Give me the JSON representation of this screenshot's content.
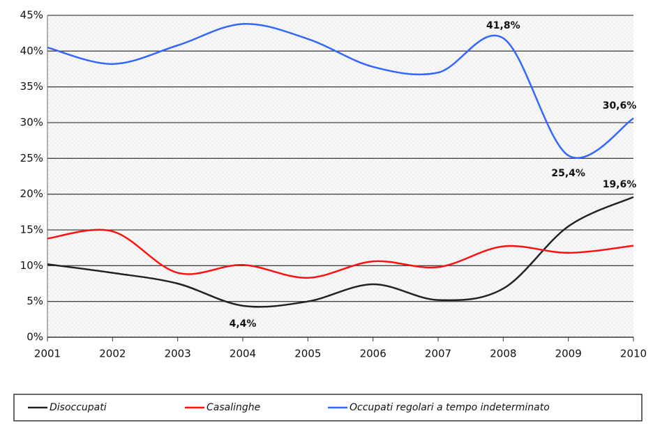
{
  "chart_data": {
    "type": "line",
    "x": [
      2001,
      2002,
      2003,
      2004,
      2005,
      2006,
      2007,
      2008,
      2009,
      2010
    ],
    "xlim": [
      2001,
      2010
    ],
    "xticks": [
      2001,
      2002,
      2003,
      2004,
      2005,
      2006,
      2007,
      2008,
      2009,
      2010
    ],
    "ylim": [
      0,
      45
    ],
    "yticks": [
      {
        "value": 0,
        "label": "0%"
      },
      {
        "value": 5,
        "label": "5%"
      },
      {
        "value": 10,
        "label": "10%"
      },
      {
        "value": 15,
        "label": "15%"
      },
      {
        "value": 20,
        "label": "20%"
      },
      {
        "value": 25,
        "label": "25%"
      },
      {
        "value": 30,
        "label": "30%"
      },
      {
        "value": 35,
        "label": "35%"
      },
      {
        "value": 40,
        "label": "40%"
      },
      {
        "value": 45,
        "label": "45%"
      }
    ],
    "grid": true,
    "series": [
      {
        "name": "Disoccupati",
        "color": "#222222",
        "values": [
          10.2,
          9.0,
          7.5,
          4.4,
          5.0,
          7.4,
          5.2,
          6.8,
          15.5,
          19.6
        ],
        "value_labels": [
          null,
          null,
          null,
          "4,4%",
          null,
          null,
          null,
          null,
          null,
          "19,6%"
        ]
      },
      {
        "name": "Casalinghe",
        "color": "#ff1010",
        "values": [
          13.8,
          14.8,
          9.0,
          10.1,
          8.3,
          10.6,
          9.8,
          12.7,
          11.8,
          12.8
        ]
      },
      {
        "name": "Occupati regolari a tempo indeterminato",
        "color": "#3366ff",
        "values": [
          40.5,
          38.2,
          40.8,
          43.8,
          41.7,
          37.8,
          37.0,
          41.8,
          25.4,
          30.6
        ],
        "value_labels": [
          null,
          null,
          null,
          null,
          null,
          null,
          null,
          "41,8%",
          "25,4%",
          "30,6%"
        ]
      }
    ]
  }
}
